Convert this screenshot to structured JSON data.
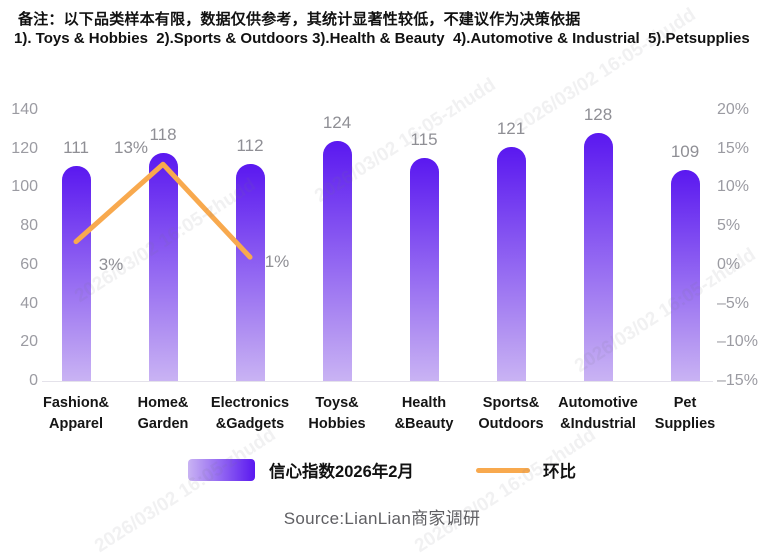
{
  "note": {
    "line1": "备注：以下品类样本有限，数据仅供参考，其统计显著性较低，不建议作为决策依据",
    "line2": "1). Toys & Hobbies  2).Sports & Outdoors 3).Health & Beauty  4).Automotive & Industrial  5).Petsupplies"
  },
  "chart_data": {
    "type": "bar",
    "categories": [
      [
        "Fashion&",
        "Apparel"
      ],
      [
        "Home&",
        "Garden"
      ],
      [
        "Electronics",
        "&Gadgets"
      ],
      [
        "Toys&",
        "Hobbies"
      ],
      [
        "Health",
        "&Beauty"
      ],
      [
        "Sports&",
        "Outdoors"
      ],
      [
        "Automotive",
        "&Industrial"
      ],
      [
        "Pet",
        "Supplies"
      ]
    ],
    "series": [
      {
        "name": "信心指数2026年2月",
        "type": "bar",
        "axis": "left",
        "values": [
          111,
          118,
          112,
          124,
          115,
          121,
          128,
          109
        ]
      },
      {
        "name": "环比",
        "type": "line",
        "axis": "right",
        "values_pct": [
          3,
          13,
          1
        ],
        "value_labels": [
          "3%",
          "13%",
          "1%"
        ]
      }
    ],
    "left_axis": {
      "min": 0,
      "max": 140,
      "ticks": [
        "140",
        "120",
        "100",
        "80",
        "60",
        "40",
        "20",
        "0"
      ]
    },
    "right_axis": {
      "min": -15,
      "max": 20,
      "ticks": [
        "20%",
        "15%",
        "10%",
        "5%",
        "0%",
        "-5%",
        "-10%",
        "-15%"
      ]
    },
    "grid": false,
    "legend_position": "bottom",
    "title": ""
  },
  "legend": {
    "bar_label": "信心指数2026年2月",
    "line_label": "环比"
  },
  "source": "Source:LianLian商家调研",
  "watermark_text": "2026/03/02 16:05-zhudd",
  "colors": {
    "bar_top": "#5a18f0",
    "bar_bottom": "#c9b3f3",
    "line": "#f8a94e",
    "axis_text": "#9b9ba2",
    "value_label": "#8f8f95",
    "category_text": "#151515",
    "source_text": "#5f5f63",
    "baseline": "#e4e2ea"
  }
}
